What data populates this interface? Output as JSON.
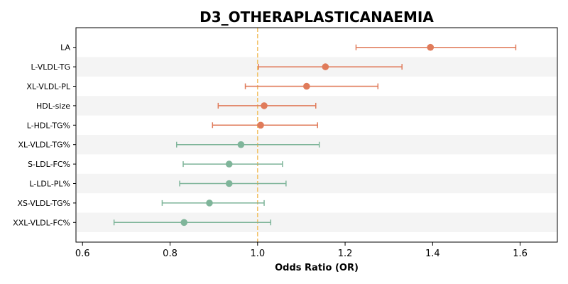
{
  "chart_data": {
    "type": "forest",
    "title": "D3_OTHERAPLASTICANAEMIA",
    "xlabel": "Odds Ratio (OR)",
    "ylabel": "",
    "xlim": [
      0.585,
      1.685
    ],
    "xticks": [
      0.6,
      0.8,
      1.0,
      1.2,
      1.4,
      1.6
    ],
    "xtick_labels": [
      "0.6",
      "0.8",
      "1.0",
      "1.2",
      "1.4",
      "1.6"
    ],
    "reference_line": 1.0,
    "reference_color": "#f2c46b",
    "increased_color": "#e07b5a",
    "decreased_color": "#7fb59a",
    "row_band_color": "#f4f4f4",
    "grid": false,
    "rows": [
      {
        "label": "LA",
        "or": 1.395,
        "lower": 1.225,
        "upper": 1.59
      },
      {
        "label": "L-VLDL-TG",
        "or": 1.155,
        "lower": 1.002,
        "upper": 1.33
      },
      {
        "label": "XL-VLDL-PL",
        "or": 1.112,
        "lower": 0.972,
        "upper": 1.275
      },
      {
        "label": "HDL-size",
        "or": 1.015,
        "lower": 0.91,
        "upper": 1.133
      },
      {
        "label": "L-HDL-TG%",
        "or": 1.007,
        "lower": 0.897,
        "upper": 1.137
      },
      {
        "label": "XL-VLDL-TG%",
        "or": 0.962,
        "lower": 0.815,
        "upper": 1.141
      },
      {
        "label": "S-LDL-FC%",
        "or": 0.935,
        "lower": 0.83,
        "upper": 1.057
      },
      {
        "label": "L-LDL-PL%",
        "or": 0.935,
        "lower": 0.822,
        "upper": 1.065
      },
      {
        "label": "XS-VLDL-TG%",
        "or": 0.89,
        "lower": 0.782,
        "upper": 1.015
      },
      {
        "label": "XXL-VLDL-FC%",
        "or": 0.832,
        "lower": 0.672,
        "upper": 1.03
      }
    ]
  }
}
